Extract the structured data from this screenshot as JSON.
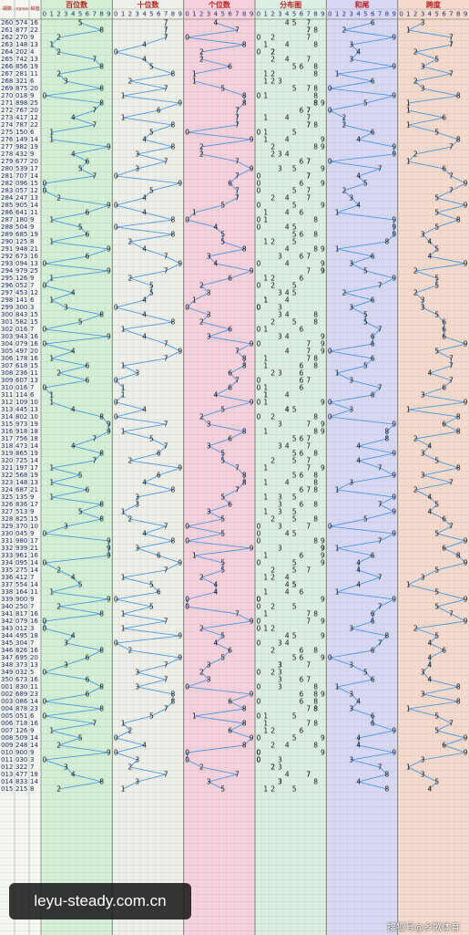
{
  "chart_data": {
    "type": "trend-table",
    "columns": [
      "期数",
      "开奖号码",
      "和值"
    ],
    "digit_labels": [
      0,
      1,
      2,
      3,
      4,
      5,
      6,
      7,
      8,
      9
    ],
    "sections": [
      {
        "title": "百位数",
        "color": "#d3efd6"
      },
      {
        "title": "十位数",
        "color": "#efefe9"
      },
      {
        "title": "个位数",
        "color": "#f7d0dd"
      },
      {
        "title": "分布图",
        "color": "#dcefe2"
      },
      {
        "title": "和尾",
        "color": "#d8d8f5"
      },
      {
        "title": "跨度",
        "color": "#f5d9cd"
      }
    ],
    "line_color": "#3a8fe0",
    "rows": [
      [
        "260",
        "574",
        16,
        6,
        3,
        [
          5,
          7,
          4
        ]
      ],
      [
        "261",
        "877",
        22,
        2,
        1,
        [
          8,
          7,
          7
        ]
      ],
      [
        "262",
        "270",
        9,
        9,
        7,
        [
          2,
          7,
          0
        ]
      ],
      [
        "263",
        "148",
        13,
        3,
        7,
        [
          1,
          4,
          8
        ]
      ],
      [
        "264",
        "202",
        4,
        4,
        2,
        [
          2,
          0,
          2
        ]
      ],
      [
        "265",
        "742",
        13,
        3,
        5,
        [
          7,
          4,
          2
        ]
      ],
      [
        "266",
        "856",
        19,
        9,
        3,
        [
          8,
          5,
          6
        ]
      ],
      [
        "267",
        "281",
        11,
        1,
        7,
        [
          2,
          8,
          1
        ]
      ],
      [
        "268",
        "321",
        6,
        6,
        2,
        [
          3,
          2,
          1
        ]
      ],
      [
        "269",
        "875",
        20,
        0,
        3,
        [
          8,
          7,
          5
        ]
      ],
      [
        "270",
        "018",
        9,
        9,
        8,
        [
          0,
          1,
          8
        ]
      ],
      [
        "271",
        "898",
        25,
        5,
        1,
        [
          8,
          9,
          8
        ]
      ],
      [
        "272",
        "767",
        20,
        0,
        1,
        [
          7,
          6,
          7
        ]
      ],
      [
        "273",
        "417",
        12,
        2,
        6,
        [
          4,
          1,
          7
        ]
      ],
      [
        "274",
        "787",
        22,
        2,
        1,
        [
          7,
          8,
          7
        ]
      ],
      [
        "275",
        "150",
        6,
        6,
        5,
        [
          1,
          5,
          0
        ]
      ],
      [
        "276",
        "149",
        14,
        4,
        8,
        [
          1,
          4,
          9
        ]
      ],
      [
        "277",
        "982",
        19,
        9,
        7,
        [
          9,
          8,
          2
        ]
      ],
      [
        "278",
        "432",
        9,
        9,
        2,
        [
          4,
          3,
          2
        ]
      ],
      [
        "279",
        "677",
        20,
        0,
        1,
        [
          6,
          7,
          7
        ]
      ],
      [
        "280",
        "539",
        17,
        7,
        6,
        [
          5,
          3,
          9
        ]
      ],
      [
        "281",
        "707",
        14,
        4,
        7,
        [
          7,
          0,
          7
        ]
      ],
      [
        "282",
        "096",
        15,
        5,
        9,
        [
          0,
          9,
          6
        ]
      ],
      [
        "283",
        "057",
        12,
        2,
        7,
        [
          0,
          5,
          7
        ]
      ],
      [
        "284",
        "247",
        13,
        3,
        5,
        [
          2,
          4,
          7
        ]
      ],
      [
        "285",
        "905",
        14,
        4,
        9,
        [
          9,
          0,
          5
        ]
      ],
      [
        "286",
        "641",
        11,
        1,
        5,
        [
          6,
          4,
          1
        ]
      ],
      [
        "287",
        "180",
        9,
        9,
        8,
        [
          1,
          8,
          0
        ]
      ],
      [
        "288",
        "504",
        9,
        9,
        5,
        [
          5,
          0,
          4
        ]
      ],
      [
        "289",
        "685",
        19,
        9,
        3,
        [
          6,
          8,
          5
        ]
      ],
      [
        "290",
        "125",
        8,
        8,
        4,
        [
          1,
          2,
          5
        ]
      ],
      [
        "291",
        "948",
        21,
        1,
        5,
        [
          9,
          4,
          8
        ]
      ],
      [
        "292",
        "673",
        16,
        6,
        4,
        [
          6,
          7,
          3
        ]
      ],
      [
        "293",
        "094",
        13,
        3,
        9,
        [
          0,
          9,
          4
        ]
      ],
      [
        "294",
        "979",
        25,
        5,
        2,
        [
          9,
          7,
          9
        ]
      ],
      [
        "295",
        "126",
        9,
        9,
        5,
        [
          1,
          2,
          6
        ]
      ],
      [
        "296",
        "052",
        7,
        7,
        5,
        [
          0,
          5,
          2
        ]
      ],
      [
        "297",
        "453",
        12,
        2,
        2,
        [
          4,
          5,
          3
        ]
      ],
      [
        "298",
        "141",
        6,
        6,
        3,
        [
          1,
          4,
          1
        ]
      ],
      [
        "299",
        "300",
        3,
        3,
        3,
        [
          3,
          0,
          0
        ]
      ],
      [
        "300",
        "843",
        15,
        5,
        5,
        [
          8,
          4,
          3
        ]
      ],
      [
        "301",
        "582",
        15,
        5,
        6,
        [
          5,
          8,
          2
        ]
      ],
      [
        "302",
        "016",
        7,
        7,
        6,
        [
          0,
          1,
          6
        ]
      ],
      [
        "303",
        "943",
        16,
        6,
        6,
        [
          9,
          4,
          3
        ]
      ],
      [
        "304",
        "079",
        16,
        6,
        9,
        [
          0,
          7,
          9
        ]
      ],
      [
        "305",
        "497",
        20,
        0,
        5,
        [
          4,
          9,
          7
        ]
      ],
      [
        "306",
        "178",
        16,
        6,
        7,
        [
          1,
          7,
          8
        ]
      ],
      [
        "307",
        "618",
        15,
        5,
        7,
        [
          6,
          1,
          8
        ]
      ],
      [
        "308",
        "236",
        11,
        1,
        4,
        [
          2,
          3,
          6
        ]
      ],
      [
        "309",
        "607",
        13,
        3,
        7,
        [
          6,
          0,
          7
        ]
      ],
      [
        "310",
        "016",
        7,
        7,
        6,
        [
          0,
          1,
          6
        ]
      ],
      [
        "311",
        "114",
        6,
        6,
        3,
        [
          1,
          1,
          4
        ]
      ],
      [
        "312",
        "109",
        10,
        0,
        9,
        [
          1,
          0,
          9
        ]
      ],
      [
        "313",
        "445",
        13,
        3,
        1,
        [
          4,
          4,
          5
        ]
      ],
      [
        "314",
        "802",
        10,
        0,
        8,
        [
          8,
          0,
          2
        ]
      ],
      [
        "315",
        "973",
        19,
        9,
        6,
        [
          9,
          7,
          3
        ]
      ],
      [
        "316",
        "918",
        18,
        8,
        8,
        [
          9,
          1,
          8
        ]
      ],
      [
        "317",
        "756",
        18,
        8,
        2,
        [
          7,
          5,
          6
        ]
      ],
      [
        "318",
        "473",
        14,
        4,
        4,
        [
          4,
          7,
          3
        ]
      ],
      [
        "319",
        "865",
        19,
        9,
        3,
        [
          8,
          6,
          5
        ]
      ],
      [
        "320",
        "725",
        14,
        4,
        5,
        [
          7,
          2,
          5
        ]
      ],
      [
        "321",
        "197",
        17,
        7,
        8,
        [
          1,
          9,
          7
        ]
      ],
      [
        "322",
        "568",
        19,
        9,
        3,
        [
          5,
          6,
          8
        ]
      ],
      [
        "323",
        "148",
        13,
        3,
        7,
        [
          1,
          4,
          8
        ]
      ],
      [
        "324",
        "687",
        21,
        1,
        2,
        [
          6,
          8,
          7
        ]
      ],
      [
        "325",
        "135",
        9,
        9,
        4,
        [
          1,
          3,
          5
        ]
      ],
      [
        "326",
        "836",
        17,
        7,
        5,
        [
          8,
          3,
          6
        ]
      ],
      [
        "327",
        "513",
        9,
        9,
        4,
        [
          5,
          1,
          3
        ]
      ],
      [
        "328",
        "825",
        15,
        5,
        6,
        [
          8,
          2,
          5
        ]
      ],
      [
        "329",
        "370",
        10,
        0,
        7,
        [
          3,
          7,
          0
        ]
      ],
      [
        "330",
        "045",
        9,
        9,
        5,
        [
          0,
          4,
          5
        ]
      ],
      [
        "331",
        "980",
        17,
        7,
        9,
        [
          9,
          8,
          0
        ]
      ],
      [
        "332",
        "939",
        21,
        1,
        6,
        [
          9,
          3,
          9
        ]
      ],
      [
        "333",
        "961",
        16,
        6,
        8,
        [
          9,
          6,
          1
        ]
      ],
      [
        "334",
        "095",
        14,
        4,
        9,
        [
          0,
          9,
          5
        ]
      ],
      [
        "335",
        "275",
        14,
        4,
        5,
        [
          2,
          7,
          5
        ]
      ],
      [
        "336",
        "412",
        7,
        7,
        3,
        [
          4,
          1,
          2
        ]
      ],
      [
        "337",
        "554",
        14,
        4,
        1,
        [
          5,
          5,
          4
        ]
      ],
      [
        "338",
        "164",
        11,
        1,
        5,
        [
          1,
          6,
          4
        ]
      ],
      [
        "339",
        "900",
        9,
        9,
        9,
        [
          9,
          0,
          0
        ]
      ],
      [
        "340",
        "250",
        7,
        7,
        5,
        [
          2,
          5,
          0
        ]
      ],
      [
        "341",
        "817",
        16,
        6,
        7,
        [
          8,
          1,
          7
        ]
      ],
      [
        "342",
        "079",
        16,
        6,
        9,
        [
          0,
          7,
          9
        ]
      ],
      [
        "343",
        "012",
        3,
        3,
        2,
        [
          0,
          1,
          2
        ]
      ],
      [
        "344",
        "495",
        18,
        8,
        5,
        [
          4,
          9,
          5
        ]
      ],
      [
        "345",
        "304",
        7,
        7,
        4,
        [
          3,
          0,
          4
        ]
      ],
      [
        "346",
        "826",
        16,
        6,
        6,
        [
          8,
          2,
          6
        ]
      ],
      [
        "347",
        "695",
        20,
        0,
        4,
        [
          6,
          9,
          5
        ]
      ],
      [
        "348",
        "373",
        13,
        3,
        4,
        [
          3,
          7,
          3
        ]
      ],
      [
        "349",
        "032",
        5,
        5,
        3,
        [
          0,
          3,
          2
        ]
      ],
      [
        "350",
        "673",
        16,
        6,
        4,
        [
          6,
          7,
          3
        ]
      ],
      [
        "001",
        "830",
        11,
        1,
        8,
        [
          8,
          3,
          0
        ]
      ],
      [
        "002",
        "689",
        23,
        3,
        3,
        [
          6,
          8,
          9
        ]
      ],
      [
        "003",
        "086",
        14,
        4,
        8,
        [
          0,
          8,
          6
        ]
      ],
      [
        "004",
        "878",
        23,
        3,
        1,
        [
          8,
          7,
          8
        ]
      ],
      [
        "005",
        "051",
        6,
        6,
        5,
        [
          0,
          5,
          1
        ]
      ],
      [
        "006",
        "718",
        16,
        6,
        7,
        [
          7,
          1,
          8
        ]
      ],
      [
        "007",
        "126",
        9,
        9,
        5,
        [
          1,
          2,
          6
        ]
      ],
      [
        "008",
        "509",
        14,
        4,
        9,
        [
          5,
          0,
          9
        ]
      ],
      [
        "009",
        "248",
        14,
        4,
        6,
        [
          2,
          4,
          8
        ]
      ],
      [
        "010",
        "900",
        9,
        9,
        9,
        [
          9,
          0,
          0
        ]
      ],
      [
        "011",
        "030",
        3,
        3,
        3,
        [
          0,
          3,
          0
        ]
      ],
      [
        "012",
        "322",
        7,
        7,
        1,
        [
          3,
          2,
          2
        ]
      ],
      [
        "013",
        "477",
        18,
        8,
        3,
        [
          4,
          7,
          7
        ]
      ],
      [
        "014",
        "833",
        14,
        4,
        5,
        [
          8,
          3,
          3
        ]
      ],
      [
        "015",
        "215",
        8,
        8,
        4,
        [
          2,
          1,
          5
        ]
      ]
    ]
  },
  "watermark": "leyu-steady.com.cn",
  "source": "搜狐号@乡歌体育"
}
